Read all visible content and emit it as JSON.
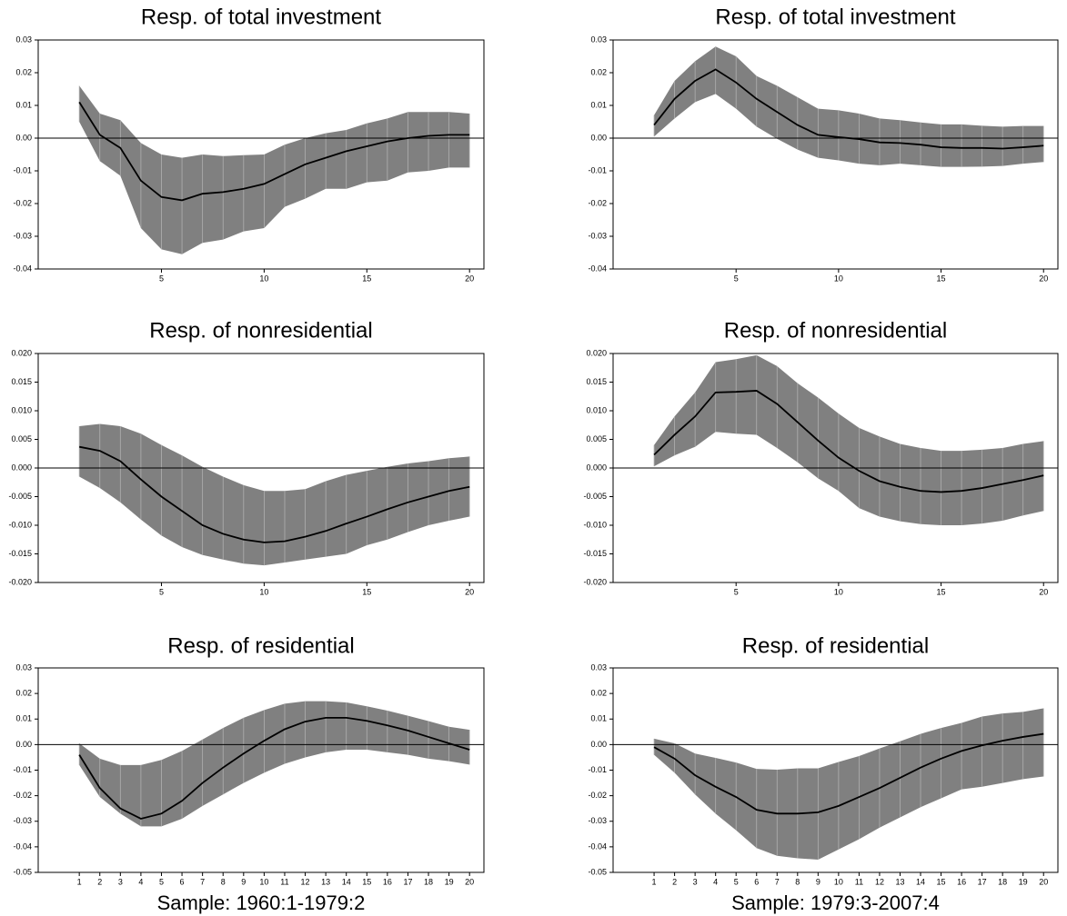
{
  "chart_data": [
    {
      "type": "band-line",
      "title": "Resp. of total investment",
      "x": [
        1,
        2,
        3,
        4,
        5,
        6,
        7,
        8,
        9,
        10,
        11,
        12,
        13,
        14,
        15,
        16,
        17,
        18,
        19,
        20
      ],
      "values": [
        0.011,
        0.001,
        -0.003,
        -0.013,
        -0.018,
        -0.019,
        -0.017,
        -0.0165,
        -0.0155,
        -0.014,
        -0.011,
        -0.008,
        -0.006,
        -0.004,
        -0.0025,
        -0.001,
        0,
        0.0007,
        0.001,
        0.001
      ],
      "upper": [
        0.016,
        0.0075,
        0.0055,
        -0.0015,
        -0.005,
        -0.006,
        -0.005,
        -0.0055,
        -0.0052,
        -0.005,
        -0.002,
        0,
        0.0015,
        0.0025,
        0.0045,
        0.006,
        0.008,
        0.008,
        0.008,
        0.0075
      ],
      "lower": [
        0.005,
        -0.007,
        -0.0115,
        -0.0275,
        -0.034,
        -0.0355,
        -0.032,
        -0.031,
        -0.0285,
        -0.0275,
        -0.021,
        -0.0185,
        -0.0155,
        -0.0155,
        -0.0135,
        -0.013,
        -0.0105,
        -0.01,
        -0.009,
        -0.009
      ],
      "color": "#000000",
      "band_color": "#808080",
      "band_line_color": "#b0b0b0",
      "zero_line": true,
      "xlim": [
        -1,
        20.7
      ],
      "xticks": [
        5,
        10,
        15,
        20
      ],
      "ylim": [
        -0.04,
        0.03
      ],
      "yticks": [
        0.03,
        0.02,
        0.01,
        {
          "value": 0,
          "label": "0.00"
        },
        -0.01,
        -0.02,
        -0.03,
        -0.04
      ]
    },
    {
      "type": "band-line",
      "title": "Resp. of total investment",
      "x": [
        1,
        2,
        3,
        4,
        5,
        6,
        7,
        8,
        9,
        10,
        11,
        12,
        13,
        14,
        15,
        16,
        17,
        18,
        19,
        20
      ],
      "values": [
        0.004,
        0.012,
        0.0175,
        0.021,
        0.017,
        0.012,
        0.008,
        0.004,
        0.001,
        0.0003,
        -0.0003,
        -0.0013,
        -0.0015,
        -0.002,
        -0.0028,
        -0.003,
        -0.003,
        -0.0032,
        -0.0028,
        -0.0023
      ],
      "upper": [
        0.007,
        0.0175,
        0.0235,
        0.028,
        0.025,
        0.019,
        0.016,
        0.0125,
        0.009,
        0.0085,
        0.0075,
        0.006,
        0.0055,
        0.0048,
        0.0042,
        0.0042,
        0.0038,
        0.0035,
        0.0037,
        0.0037
      ],
      "lower": [
        0.0005,
        0.006,
        0.011,
        0.0135,
        0.009,
        0.0035,
        -0.0002,
        -0.0035,
        -0.006,
        -0.0068,
        -0.0078,
        -0.0083,
        -0.0078,
        -0.0083,
        -0.0088,
        -0.0088,
        -0.0087,
        -0.0085,
        -0.0078,
        -0.0073
      ],
      "color": "#000000",
      "band_color": "#808080",
      "band_line_color": "#b0b0b0",
      "zero_line": true,
      "xlim": [
        -1,
        20.7
      ],
      "xticks": [
        5,
        10,
        15,
        20
      ],
      "ylim": [
        -0.04,
        0.03
      ],
      "yticks": [
        0.03,
        0.02,
        0.01,
        {
          "value": 0,
          "label": "0.00"
        },
        -0.01,
        -0.02,
        -0.03,
        -0.04
      ]
    },
    {
      "type": "band-line",
      "title": "Resp. of nonresidential",
      "x": [
        1,
        2,
        3,
        4,
        5,
        6,
        7,
        8,
        9,
        10,
        11,
        12,
        13,
        14,
        15,
        16,
        17,
        18,
        19,
        20
      ],
      "values": [
        0.0037,
        0.003,
        0.0012,
        -0.002,
        -0.005,
        -0.0075,
        -0.01,
        -0.0115,
        -0.0125,
        -0.013,
        -0.0128,
        -0.012,
        -0.011,
        -0.0097,
        -0.0085,
        -0.0072,
        -0.006,
        -0.005,
        -0.004,
        -0.0033
      ],
      "upper": [
        0.0073,
        0.0077,
        0.0073,
        0.006,
        0.004,
        0.0022,
        0.0002,
        -0.0015,
        -0.003,
        -0.004,
        -0.004,
        -0.0037,
        -0.0023,
        -0.0012,
        -0.0005,
        0.0002,
        0.0008,
        0.0012,
        0.0017,
        0.002
      ],
      "lower": [
        -0.0015,
        -0.0035,
        -0.006,
        -0.009,
        -0.0118,
        -0.0138,
        -0.0152,
        -0.016,
        -0.0167,
        -0.017,
        -0.0165,
        -0.016,
        -0.0155,
        -0.015,
        -0.0135,
        -0.0125,
        -0.0112,
        -0.01,
        -0.0092,
        -0.0085
      ],
      "color": "#000000",
      "band_color": "#808080",
      "band_line_color": "#b0b0b0",
      "zero_line": true,
      "xlim": [
        -1,
        20.7
      ],
      "xticks": [
        5,
        10,
        15,
        20
      ],
      "ylim": [
        -0.02,
        0.02
      ],
      "yticks": [
        {
          "value": 0.02,
          "label": "0.020"
        },
        0.015,
        {
          "value": 0.01,
          "label": "0.010"
        },
        0.005,
        {
          "value": 0,
          "label": "0.000"
        },
        -0.005,
        {
          "value": -0.01,
          "label": "-0.010"
        },
        -0.015,
        {
          "value": -0.02,
          "label": "-0.020"
        }
      ]
    },
    {
      "type": "band-line",
      "title": "Resp. of nonresidential",
      "x": [
        1,
        2,
        3,
        4,
        5,
        6,
        7,
        8,
        9,
        10,
        11,
        12,
        13,
        14,
        15,
        16,
        17,
        18,
        19,
        20
      ],
      "values": [
        0.0023,
        0.0058,
        0.009,
        0.0132,
        0.0133,
        0.0135,
        0.0112,
        0.008,
        0.0048,
        0.0018,
        -0.0005,
        -0.0023,
        -0.0033,
        -0.004,
        -0.0042,
        -0.004,
        -0.0035,
        -0.0028,
        -0.0021,
        -0.0013
      ],
      "upper": [
        0.004,
        0.009,
        0.0132,
        0.0185,
        0.019,
        0.0197,
        0.0178,
        0.0148,
        0.0123,
        0.0095,
        0.007,
        0.0055,
        0.0042,
        0.0035,
        0.003,
        0.003,
        0.0032,
        0.0035,
        0.0042,
        0.0047
      ],
      "lower": [
        0.0003,
        0.0022,
        0.0037,
        0.0063,
        0.006,
        0.0058,
        0.0035,
        0.001,
        -0.0018,
        -0.004,
        -0.007,
        -0.0085,
        -0.0093,
        -0.0098,
        -0.01,
        -0.01,
        -0.0097,
        -0.0092,
        -0.0083,
        -0.0075
      ],
      "color": "#000000",
      "band_color": "#808080",
      "band_line_color": "#b0b0b0",
      "zero_line": true,
      "xlim": [
        -1,
        20.7
      ],
      "xticks": [
        5,
        10,
        15,
        20
      ],
      "ylim": [
        -0.02,
        0.02
      ],
      "yticks": [
        {
          "value": 0.02,
          "label": "0.020"
        },
        0.015,
        {
          "value": 0.01,
          "label": "0.010"
        },
        0.005,
        {
          "value": 0,
          "label": "0.000"
        },
        -0.005,
        {
          "value": -0.01,
          "label": "-0.010"
        },
        -0.015,
        {
          "value": -0.02,
          "label": "-0.020"
        }
      ]
    },
    {
      "type": "band-line",
      "title": "Resp. of residential",
      "xlabel": "Sample: 1960:1-1979:2",
      "x": [
        1,
        2,
        3,
        4,
        5,
        6,
        7,
        8,
        9,
        10,
        11,
        12,
        13,
        14,
        15,
        16,
        17,
        18,
        19,
        20
      ],
      "values": [
        -0.004,
        -0.017,
        -0.025,
        -0.029,
        -0.027,
        -0.022,
        -0.015,
        -0.009,
        -0.0035,
        0.0015,
        0.006,
        0.009,
        0.0105,
        0.0105,
        0.0093,
        0.0075,
        0.0055,
        0.003,
        0.0005,
        -0.002
      ],
      "upper": [
        0.0005,
        -0.0055,
        -0.008,
        -0.008,
        -0.006,
        -0.0025,
        0.002,
        0.0065,
        0.0105,
        0.0135,
        0.016,
        0.017,
        0.017,
        0.0165,
        0.015,
        0.0133,
        0.0113,
        0.0092,
        0.007,
        0.0058
      ],
      "lower": [
        -0.008,
        -0.0205,
        -0.027,
        -0.032,
        -0.032,
        -0.029,
        -0.024,
        -0.0195,
        -0.015,
        -0.011,
        -0.0075,
        -0.005,
        -0.003,
        -0.002,
        -0.002,
        -0.003,
        -0.004,
        -0.0055,
        -0.0065,
        -0.0078
      ],
      "color": "#000000",
      "band_color": "#808080",
      "band_line_color": "#b0b0b0",
      "zero_line": true,
      "xlim": [
        -1,
        20.7
      ],
      "xticks": [
        1,
        2,
        3,
        4,
        5,
        6,
        7,
        8,
        9,
        10,
        11,
        12,
        13,
        14,
        15,
        16,
        17,
        18,
        19,
        20
      ],
      "ylim": [
        -0.05,
        0.03
      ],
      "yticks": [
        0.03,
        0.02,
        0.01,
        {
          "value": 0,
          "label": "0.00"
        },
        -0.01,
        -0.02,
        -0.03,
        -0.04,
        -0.05
      ]
    },
    {
      "type": "band-line",
      "title": "Resp. of residential",
      "xlabel": "Sample: 1979:3-2007:4",
      "x": [
        1,
        2,
        3,
        4,
        5,
        6,
        7,
        8,
        9,
        10,
        11,
        12,
        13,
        14,
        15,
        16,
        17,
        18,
        19,
        20
      ],
      "values": [
        -0.001,
        -0.0055,
        -0.012,
        -0.0165,
        -0.0205,
        -0.0255,
        -0.027,
        -0.027,
        -0.0265,
        -0.024,
        -0.0205,
        -0.017,
        -0.013,
        -0.009,
        -0.0055,
        -0.0025,
        -0.0003,
        0.0015,
        0.003,
        0.0042
      ],
      "upper": [
        0.0023,
        0.0005,
        -0.0035,
        -0.0052,
        -0.007,
        -0.0095,
        -0.0098,
        -0.0093,
        -0.0093,
        -0.0068,
        -0.0045,
        -0.0015,
        0.0013,
        0.0042,
        0.0065,
        0.0085,
        0.011,
        0.0122,
        0.0128,
        0.0142
      ],
      "lower": [
        -0.004,
        -0.011,
        -0.0195,
        -0.027,
        -0.0335,
        -0.0405,
        -0.0435,
        -0.0445,
        -0.045,
        -0.041,
        -0.037,
        -0.0325,
        -0.0285,
        -0.0245,
        -0.021,
        -0.0175,
        -0.0165,
        -0.015,
        -0.0135,
        -0.0125
      ],
      "color": "#000000",
      "band_color": "#808080",
      "band_line_color": "#b0b0b0",
      "zero_line": true,
      "xlim": [
        -1,
        20.7
      ],
      "xticks": [
        1,
        2,
        3,
        4,
        5,
        6,
        7,
        8,
        9,
        10,
        11,
        12,
        13,
        14,
        15,
        16,
        17,
        18,
        19,
        20
      ],
      "ylim": [
        -0.05,
        0.03
      ],
      "yticks": [
        0.03,
        0.02,
        0.01,
        {
          "value": 0,
          "label": "0.00"
        },
        -0.01,
        -0.02,
        -0.03,
        -0.04,
        -0.05
      ]
    }
  ]
}
